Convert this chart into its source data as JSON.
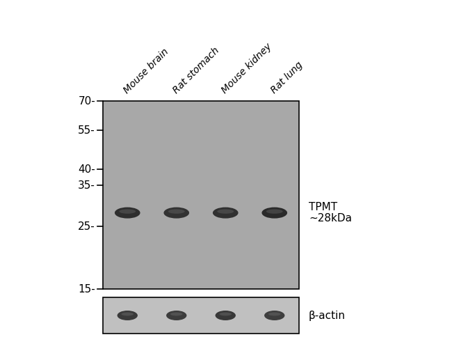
{
  "figure_width": 6.5,
  "figure_height": 4.94,
  "dpi": 100,
  "bg_color": "#ffffff",
  "lane_labels": [
    "Mouse brain",
    "Rat stomach",
    "Mouse kidney",
    "Rat lung"
  ],
  "mw_values": [
    70,
    55,
    40,
    35,
    25,
    15
  ],
  "band_label_line1": "TPMT",
  "band_label_line2": "~28kDa",
  "beta_actin_label": "β-actin",
  "gel_facecolor": "#a8a8a8",
  "actin_facecolor": "#c0c0c0",
  "band_colors": [
    "#2e2e2e",
    "#323232",
    "#303030",
    "#2a2a2a"
  ],
  "actin_band_colors": [
    "#3a3a3a",
    "#3c3c3c",
    "#383838",
    "#3e3e3e"
  ],
  "font_color": "#000000",
  "mw_fontsize": 11,
  "lane_label_fontsize": 10,
  "annotation_fontsize": 11,
  "actin_label_fontsize": 11
}
